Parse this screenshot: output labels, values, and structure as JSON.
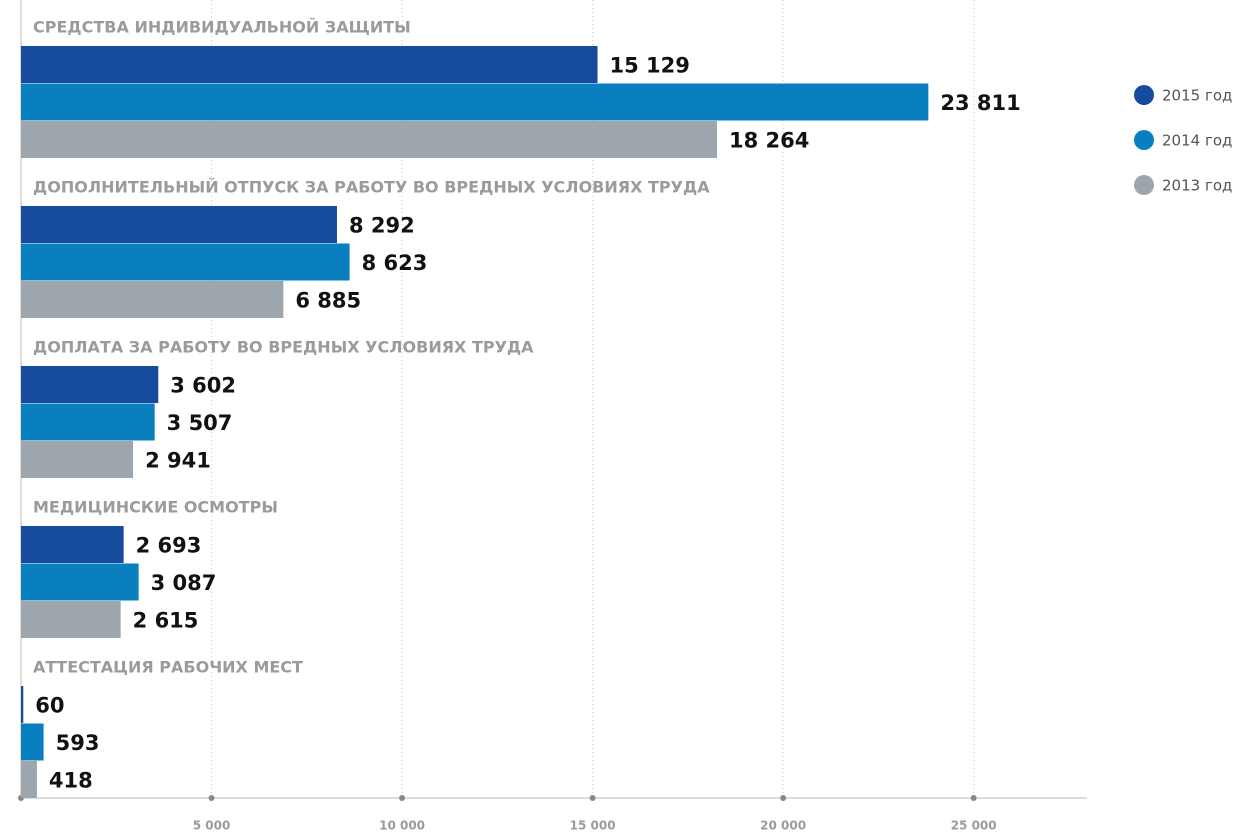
{
  "chart_data": {
    "type": "bar",
    "orientation": "horizontal",
    "categories": [
      "СРЕДСТВА ИНДИВИДУАЛЬНОЙ ЗАЩИТЫ",
      "ДОПОЛНИТЕЛЬНЫЙ ОТПУСК ЗА РАБОТУ ВО ВРЕДНЫХ УСЛОВИЯХ ТРУДА",
      "ДОПЛАТА ЗА РАБОТУ ВО ВРЕДНЫХ УСЛОВИЯХ ТРУДА",
      "МЕДИЦИНСКИЕ ОСМОТРЫ",
      "АТТЕСТАЦИЯ РАБОЧИХ МЕСТ"
    ],
    "series": [
      {
        "name": "2015 год",
        "color": "#174b9e",
        "values": [
          15129,
          8292,
          3602,
          2693,
          60
        ],
        "value_labels": [
          "15 129",
          "8 292",
          "3 602",
          "2 693",
          "60"
        ]
      },
      {
        "name": "2014 год",
        "color": "#0a7fc0",
        "values": [
          23811,
          8623,
          3507,
          3087,
          593
        ],
        "value_labels": [
          "23 811",
          "8 623",
          "3 507",
          "3 087",
          "593"
        ]
      },
      {
        "name": "2013 год",
        "color": "#9da6ad",
        "values": [
          18264,
          6885,
          2941,
          2615,
          418
        ],
        "value_labels": [
          "18 264",
          "6 885",
          "2 941",
          "2 615",
          "418"
        ]
      }
    ],
    "xlim": [
      0,
      28000
    ],
    "xticks": [
      {
        "value": 5000,
        "label": "5 000"
      },
      {
        "value": 10000,
        "label": "10 000"
      },
      {
        "value": 15000,
        "label": "15 000"
      },
      {
        "value": 20000,
        "label": "20 000"
      },
      {
        "value": 25000,
        "label": "25 000"
      }
    ],
    "grid": true,
    "legend": "right"
  }
}
